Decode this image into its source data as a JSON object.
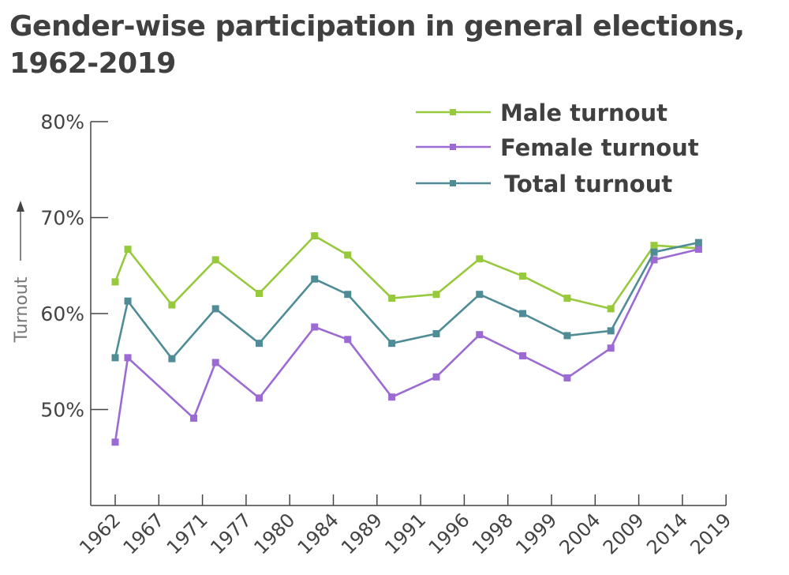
{
  "chart_data": {
    "type": "line",
    "title": "Gender-wise participation in general elections, 1962-2019",
    "xlabel": "",
    "ylabel": "Turnout",
    "ylabel_arrow": "up-arrow",
    "ylim": [
      40,
      80
    ],
    "yticks": [
      50,
      60,
      70,
      80
    ],
    "ytick_labels": [
      "50%",
      "60%",
      "70%",
      "80%"
    ],
    "x_tick_labels": [
      "1962",
      "1967",
      "1971",
      "1977",
      "1980",
      "1984",
      "1989",
      "1991",
      "1996",
      "1998",
      "1999",
      "2004",
      "2009",
      "2014",
      "2019"
    ],
    "grid": false,
    "legend_position": "top-right",
    "series": [
      {
        "name": "Male turnout",
        "color": "#97c93d",
        "points": [
          {
            "x": 0,
            "y": 63.3
          },
          {
            "x": 0.29,
            "y": 66.7
          },
          {
            "x": 1.3,
            "y": 60.9
          },
          {
            "x": 2.3,
            "y": 65.6
          },
          {
            "x": 3.3,
            "y": 62.1
          },
          {
            "x": 4.57,
            "y": 68.1
          },
          {
            "x": 5.33,
            "y": 66.1
          },
          {
            "x": 6.34,
            "y": 61.6
          },
          {
            "x": 7.36,
            "y": 62.0
          },
          {
            "x": 8.35,
            "y": 65.7
          },
          {
            "x": 9.34,
            "y": 63.9
          },
          {
            "x": 10.36,
            "y": 61.6
          },
          {
            "x": 11.36,
            "y": 60.5
          },
          {
            "x": 12.35,
            "y": 67.1
          },
          {
            "x": 13.37,
            "y": 66.8
          }
        ]
      },
      {
        "name": "Female turnout",
        "color": "#9b6bd3",
        "points": [
          {
            "x": 0,
            "y": 46.6
          },
          {
            "x": 0.29,
            "y": 55.4
          },
          {
            "x": 1.8,
            "y": 49.1
          },
          {
            "x": 2.3,
            "y": 54.9
          },
          {
            "x": 3.3,
            "y": 51.2
          },
          {
            "x": 4.57,
            "y": 58.6
          },
          {
            "x": 5.33,
            "y": 57.3
          },
          {
            "x": 6.34,
            "y": 51.3
          },
          {
            "x": 7.36,
            "y": 53.4
          },
          {
            "x": 8.35,
            "y": 57.8
          },
          {
            "x": 9.34,
            "y": 55.6
          },
          {
            "x": 10.36,
            "y": 53.3
          },
          {
            "x": 11.36,
            "y": 56.4
          },
          {
            "x": 12.35,
            "y": 65.6
          },
          {
            "x": 13.37,
            "y": 66.7
          }
        ]
      },
      {
        "name": "Total turnout",
        "color": "#4f8c96",
        "points": [
          {
            "x": 0,
            "y": 55.4
          },
          {
            "x": 0.29,
            "y": 61.3
          },
          {
            "x": 1.3,
            "y": 55.3
          },
          {
            "x": 2.3,
            "y": 60.5
          },
          {
            "x": 3.3,
            "y": 56.9
          },
          {
            "x": 4.57,
            "y": 63.6
          },
          {
            "x": 5.33,
            "y": 62.0
          },
          {
            "x": 6.34,
            "y": 56.9
          },
          {
            "x": 7.36,
            "y": 57.9
          },
          {
            "x": 8.35,
            "y": 62.0
          },
          {
            "x": 9.34,
            "y": 60.0
          },
          {
            "x": 10.36,
            "y": 57.7
          },
          {
            "x": 11.36,
            "y": 58.2
          },
          {
            "x": 12.35,
            "y": 66.4
          },
          {
            "x": 13.37,
            "y": 67.4
          }
        ]
      }
    ]
  }
}
